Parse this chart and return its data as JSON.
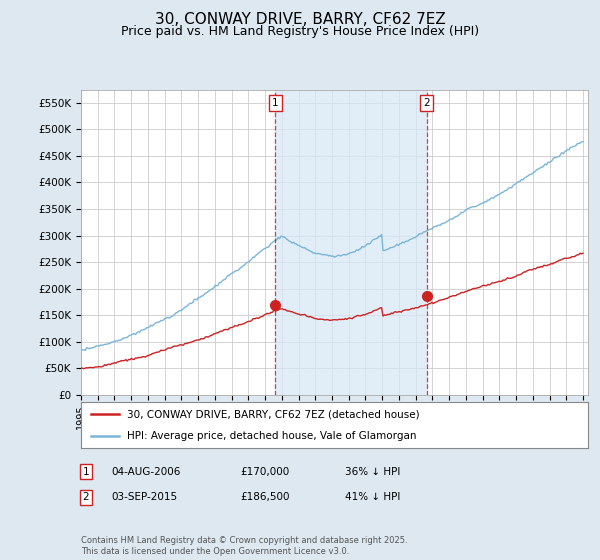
{
  "title": "30, CONWAY DRIVE, BARRY, CF62 7EZ",
  "subtitle": "Price paid vs. HM Land Registry's House Price Index (HPI)",
  "title_fontsize": 11,
  "subtitle_fontsize": 9,
  "hpi_color": "#7ab5d9",
  "hpi_fill_color": "#d6e8f5",
  "price_color": "#cc2222",
  "background_color": "#dde8f0",
  "plot_bg_color": "#ffffff",
  "grid_color": "#cccccc",
  "ylim": [
    0,
    575000
  ],
  "yticks": [
    0,
    50000,
    100000,
    150000,
    200000,
    250000,
    300000,
    350000,
    400000,
    450000,
    500000,
    550000
  ],
  "ytick_labels": [
    "£0",
    "£50K",
    "£100K",
    "£150K",
    "£200K",
    "£250K",
    "£300K",
    "£350K",
    "£400K",
    "£450K",
    "£500K",
    "£550K"
  ],
  "xstart_year": 1995,
  "xend_year": 2025,
  "transaction1_date": 2006.6,
  "transaction2_date": 2015.67,
  "transaction1_price": 170000,
  "transaction2_price": 186500,
  "legend_line1": "30, CONWAY DRIVE, BARRY, CF62 7EZ (detached house)",
  "legend_line2": "HPI: Average price, detached house, Vale of Glamorgan",
  "footnote": "Contains HM Land Registry data © Crown copyright and database right 2025.\nThis data is licensed under the Open Government Licence v3.0."
}
